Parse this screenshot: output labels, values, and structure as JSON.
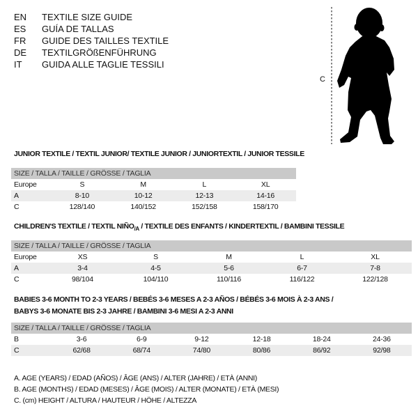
{
  "languages": [
    {
      "code": "EN",
      "name": "TEXTILE SIZE GUIDE"
    },
    {
      "code": "ES",
      "name": "GUÍA DE TALLAS"
    },
    {
      "code": "FR",
      "name": "GUIDE DES TAILLES TEXTILE"
    },
    {
      "code": "DE",
      "name": "TEXTILGRÖßENFÜHRUNG"
    },
    {
      "code": "IT",
      "name": "GUIDA ALLE TAGLIE TESSILI"
    }
  ],
  "figure": {
    "icon": "child-silhouette-icon",
    "measure_label": "C"
  },
  "junior": {
    "title": "JUNIOR TEXTILE / TEXTIL JUNIOR/ TEXTILE JUNIOR / JUNIORTEXTIL / JUNIOR TESSILE",
    "header": "SIZE / TALLA / TAILLE / GRÖSSE / TAGLIA",
    "rows": [
      {
        "label": "Europe",
        "values": [
          "S",
          "M",
          "L",
          "XL"
        ]
      },
      {
        "label": "A",
        "values": [
          "8-10",
          "10-12",
          "12-13",
          "14-16"
        ]
      },
      {
        "label": "C",
        "values": [
          "128/140",
          "140/152",
          "152/158",
          "158/170"
        ]
      }
    ]
  },
  "children": {
    "title_main": "CHILDREN'S TEXTILE / TEXTIL NIÑO",
    "title_sub": "/A",
    "title_rest": " / TEXTILE DES ENFANTS / KINDERTEXTIL / BAMBINI TESSILE",
    "header": "SIZE / TALLA / TAILLE / GRÖSSE / TAGLIA",
    "rows": [
      {
        "label": "Europe",
        "values": [
          "XS",
          "S",
          "M",
          "L",
          "XL"
        ]
      },
      {
        "label": "A",
        "values": [
          "3-4",
          "4-5",
          "5-6",
          "6-7",
          "7-8"
        ]
      },
      {
        "label": "C",
        "values": [
          "98/104",
          "104/110",
          "110/116",
          "116/122",
          "122/128"
        ]
      }
    ]
  },
  "babies": {
    "title_line1": "BABIES 3-6 MONTH TO 2-3 YEARS / BEBÉS 3-6 MESES A 2-3 AÑOS / BÉBÉS 3-6 MOIS À 2-3 ANS /",
    "title_line2": "BABYS 3-6 MONATE BIS 2-3 JAHRE / BAMBINI 3-6 MESI A 2-3 ANNI",
    "header": "SIZE / TALLA / TAILLE / GRÖSSE / TAGLIA",
    "rows": [
      {
        "label": "B",
        "values": [
          "3-6",
          "6-9",
          "9-12",
          "12-18",
          "18-24",
          "24-36"
        ]
      },
      {
        "label": "C",
        "values": [
          "62/68",
          "68/74",
          "74/80",
          "80/86",
          "86/92",
          "92/98"
        ]
      }
    ]
  },
  "legend": [
    "A. AGE (YEARS) / EDAD (AÑOS) / ÂGE (ANS) / ALTER (JAHRE) / ETÀ (ANNI)",
    "B. AGE (MONTHS) / EDAD (MESES) / ÂGE (MOIS) / ALTER (MONATE) / ETÀ (MESI)",
    "C. (cm) HEIGHT / ALTURA / HAUTEUR / HÖHE / ALTEZZA"
  ],
  "colors": {
    "header_bg": "#c9c9c9",
    "alt_row_bg": "#ececec",
    "text": "#111111"
  }
}
